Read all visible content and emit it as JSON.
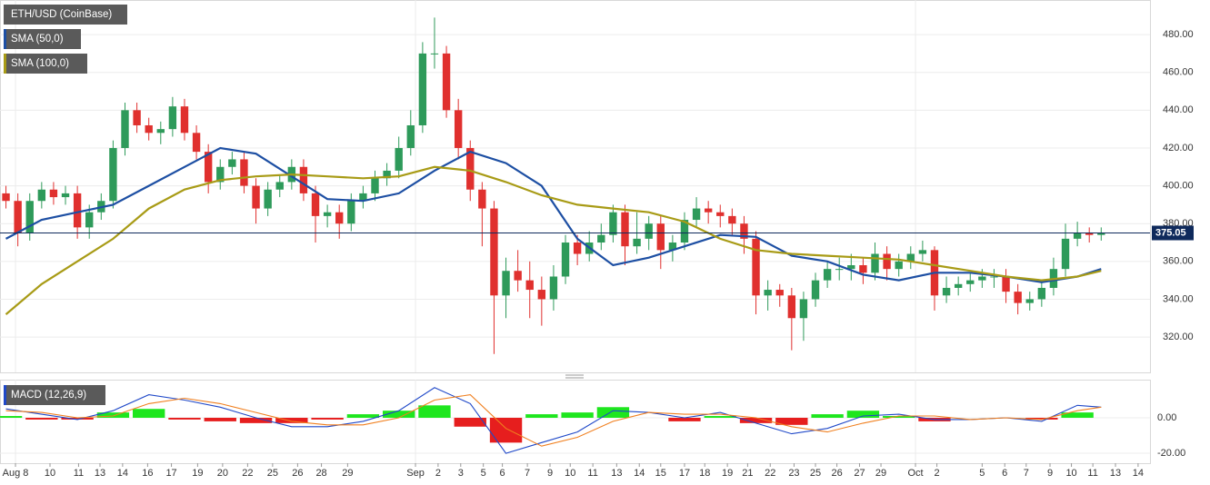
{
  "chart_data": {
    "type": "candlestick",
    "title": "ETH/USD (CoinBase)",
    "xlim": [
      0,
      96.6
    ],
    "xticks": [
      {
        "value": 1.3,
        "label": "Aug 8"
      },
      {
        "value": 4.2,
        "label": "10"
      },
      {
        "value": 6.6,
        "label": "11"
      },
      {
        "value": 8.4,
        "label": "13"
      },
      {
        "value": 10.3,
        "label": "14"
      },
      {
        "value": 12.4,
        "label": "16"
      },
      {
        "value": 14.4,
        "label": "17"
      },
      {
        "value": 16.6,
        "label": "19"
      },
      {
        "value": 18.7,
        "label": "20"
      },
      {
        "value": 20.8,
        "label": "22"
      },
      {
        "value": 22.9,
        "label": "25"
      },
      {
        "value": 25.0,
        "label": "26"
      },
      {
        "value": 27.0,
        "label": "28"
      },
      {
        "value": 29.2,
        "label": "29"
      },
      {
        "value": 34.9,
        "label": "Sep"
      },
      {
        "value": 36.8,
        "label": "2"
      },
      {
        "value": 38.7,
        "label": "3"
      },
      {
        "value": 40.6,
        "label": "5"
      },
      {
        "value": 42.2,
        "label": "6"
      },
      {
        "value": 44.3,
        "label": "7"
      },
      {
        "value": 46.2,
        "label": "9"
      },
      {
        "value": 47.9,
        "label": "10"
      },
      {
        "value": 49.8,
        "label": "11"
      },
      {
        "value": 51.8,
        "label": "13"
      },
      {
        "value": 53.7,
        "label": "14"
      },
      {
        "value": 55.5,
        "label": "15"
      },
      {
        "value": 57.5,
        "label": "17"
      },
      {
        "value": 59.2,
        "label": "18"
      },
      {
        "value": 61.1,
        "label": "19"
      },
      {
        "value": 62.8,
        "label": "21"
      },
      {
        "value": 64.7,
        "label": "22"
      },
      {
        "value": 66.7,
        "label": "23"
      },
      {
        "value": 68.5,
        "label": "25"
      },
      {
        "value": 70.3,
        "label": "26"
      },
      {
        "value": 72.2,
        "label": "27"
      },
      {
        "value": 74.0,
        "label": "29"
      },
      {
        "value": 76.9,
        "label": "Oct"
      },
      {
        "value": 78.7,
        "label": "2"
      },
      {
        "value": 82.5,
        "label": "5"
      },
      {
        "value": 84.4,
        "label": "6"
      },
      {
        "value": 86.2,
        "label": "7"
      },
      {
        "value": 88.2,
        "label": "9"
      },
      {
        "value": 90.0,
        "label": "10"
      },
      {
        "value": 91.8,
        "label": "11"
      },
      {
        "value": 93.7,
        "label": "13"
      },
      {
        "value": 95.6,
        "label": "14"
      }
    ],
    "ylim": [
      301.3,
      498.3
    ],
    "yticks": [
      {
        "value": 320,
        "label": "320.00"
      },
      {
        "value": 340,
        "label": "340.00"
      },
      {
        "value": 360,
        "label": "360.00"
      },
      {
        "value": 380,
        "label": "380.00"
      },
      {
        "value": 400,
        "label": "400.00"
      },
      {
        "value": 420,
        "label": "420.00"
      },
      {
        "value": 440,
        "label": "440.00"
      },
      {
        "value": 460,
        "label": "460.00"
      },
      {
        "value": 480,
        "label": "480.00"
      }
    ],
    "grid": true,
    "candles": {
      "up_color": "#2e9a5a",
      "down_color": "#e0302e",
      "open": [
        396,
        392,
        375,
        392,
        398,
        394,
        396,
        378,
        386,
        392,
        420,
        440,
        432,
        428,
        430,
        442,
        428,
        418,
        402,
        410,
        414,
        400,
        388,
        398,
        402,
        410,
        396,
        384,
        386,
        380,
        392,
        396,
        404,
        408,
        420,
        432,
        470,
        470,
        440,
        420,
        398,
        388,
        342,
        355,
        350,
        345,
        340,
        352,
        370,
        364,
        370,
        374,
        386,
        368,
        372,
        380,
        366,
        370,
        382,
        388,
        386,
        384,
        380,
        372,
        342,
        345,
        342,
        330,
        340,
        350,
        356,
        356,
        358,
        354,
        364,
        356,
        360,
        364,
        366,
        342,
        346,
        348,
        350,
        352,
        352,
        344,
        338,
        340,
        346,
        356,
        372,
        375,
        374
      ],
      "high": [
        400,
        396,
        396,
        402,
        402,
        400,
        400,
        390,
        396,
        424,
        444,
        444,
        436,
        434,
        447,
        446,
        432,
        422,
        414,
        418,
        418,
        404,
        402,
        406,
        414,
        414,
        400,
        390,
        390,
        396,
        400,
        408,
        412,
        426,
        440,
        476,
        489,
        474,
        446,
        424,
        402,
        392,
        362,
        366,
        360,
        352,
        358,
        374,
        374,
        376,
        380,
        390,
        390,
        386,
        384,
        384,
        374,
        386,
        394,
        392,
        390,
        388,
        384,
        376,
        350,
        348,
        346,
        344,
        354,
        360,
        362,
        364,
        362,
        370,
        368,
        364,
        368,
        371,
        368,
        352,
        352,
        354,
        356,
        356,
        356,
        348,
        344,
        350,
        362,
        380,
        381,
        378,
        378
      ],
      "low": [
        388,
        368,
        371,
        388,
        390,
        390,
        372,
        372,
        382,
        388,
        416,
        428,
        424,
        422,
        426,
        424,
        414,
        396,
        398,
        406,
        396,
        380,
        384,
        394,
        398,
        392,
        370,
        378,
        372,
        376,
        388,
        392,
        400,
        404,
        416,
        428,
        462,
        436,
        414,
        392,
        368,
        311,
        330,
        344,
        330,
        326,
        334,
        348,
        358,
        360,
        366,
        370,
        358,
        364,
        366,
        356,
        360,
        366,
        378,
        380,
        378,
        374,
        364,
        332,
        334,
        336,
        313,
        318,
        336,
        346,
        350,
        350,
        348,
        350,
        350,
        352,
        356,
        360,
        334,
        338,
        342,
        344,
        346,
        346,
        338,
        332,
        334,
        336,
        342,
        352,
        368,
        370,
        371
      ],
      "close": [
        392,
        375,
        392,
        398,
        394,
        396,
        378,
        386,
        392,
        420,
        440,
        432,
        428,
        430,
        442,
        428,
        418,
        402,
        410,
        414,
        400,
        388,
        398,
        402,
        410,
        396,
        384,
        386,
        380,
        392,
        396,
        404,
        408,
        420,
        432,
        470,
        470,
        440,
        420,
        398,
        388,
        342,
        355,
        350,
        345,
        340,
        352,
        370,
        364,
        370,
        374,
        386,
        368,
        372,
        380,
        366,
        370,
        382,
        388,
        386,
        384,
        380,
        372,
        342,
        345,
        342,
        330,
        340,
        350,
        356,
        356,
        358,
        354,
        364,
        356,
        360,
        364,
        366,
        342,
        346,
        348,
        350,
        352,
        352,
        344,
        338,
        340,
        346,
        356,
        372,
        375,
        374,
        375
      ]
    },
    "overlays": [
      {
        "name": "SMA (50,0)",
        "color": "#1d4fa3",
        "x": [
          0.5,
          3.5,
          6.5,
          9.5,
          12.5,
          15.5,
          18.5,
          21.5,
          24.5,
          27.5,
          30.5,
          33.5,
          36.5,
          39.5,
          42.5,
          45.5,
          48.5,
          51.5,
          54.5,
          57.5,
          60.5,
          63.5,
          66.5,
          69.5,
          72.5,
          75.5,
          78.5,
          81.5,
          84.5,
          87.5,
          90.5,
          92.5
        ],
        "values": [
          372,
          382,
          386,
          390,
          400,
          410,
          420,
          417,
          405,
          393,
          392,
          396,
          408,
          418,
          412,
          400,
          372,
          358,
          362,
          368,
          374,
          373,
          363,
          360,
          353,
          350,
          354,
          354,
          352,
          349,
          352,
          356
        ]
      },
      {
        "name": "SMA (100,0)",
        "color": "#a89b16",
        "x": [
          0.5,
          3.5,
          6.5,
          9.5,
          12.5,
          15.5,
          18.5,
          21.5,
          24.5,
          27.5,
          30.5,
          33.5,
          36.5,
          39.5,
          42.5,
          45.5,
          48.5,
          51.5,
          54.5,
          57.5,
          60.5,
          63.5,
          66.5,
          69.5,
          72.5,
          75.5,
          78.5,
          81.5,
          84.5,
          87.5,
          90.5,
          92.5
        ],
        "values": [
          332,
          348,
          360,
          372,
          388,
          398,
          403,
          405,
          406,
          405,
          404,
          405,
          410,
          408,
          402,
          395,
          390,
          388,
          386,
          381,
          372,
          366,
          364,
          363,
          362,
          361,
          358,
          355,
          352,
          350,
          352,
          355
        ]
      }
    ],
    "last_price": {
      "value": 375.05,
      "label": "375.05",
      "color": "#0f2a5c"
    },
    "macd": {
      "title": "MACD (12,26,9)",
      "ylim": [
        -25.6,
        21.5
      ],
      "yticks": [
        {
          "value": -20,
          "label": "-20.00"
        },
        {
          "value": 0,
          "label": "0.00"
        }
      ],
      "x": [
        0.5,
        3.5,
        6.5,
        9.5,
        12.5,
        15.5,
        18.5,
        21.5,
        24.5,
        27.5,
        30.5,
        33.5,
        36.5,
        39.5,
        42.5,
        45.5,
        48.5,
        51.5,
        54.5,
        57.5,
        60.5,
        63.5,
        66.5,
        69.5,
        72.5,
        75.5,
        78.5,
        81.5,
        84.5,
        87.5,
        90.5,
        92.5
      ],
      "series": [
        {
          "color": "#1f48c8",
          "values": [
            5,
            2,
            -1,
            4,
            13,
            10,
            6,
            0,
            -5,
            -5,
            -2,
            4,
            17,
            8,
            -20,
            -14,
            -8,
            4,
            3,
            0,
            3,
            -3,
            -9,
            -6,
            1,
            2,
            -1,
            -1,
            0,
            -2,
            7,
            6
          ]
        },
        {
          "color": "#f07f1e",
          "values": [
            4,
            3,
            0,
            1,
            8,
            11,
            8,
            3,
            -2,
            -4,
            -4,
            0,
            10,
            13,
            -6,
            -16,
            -11,
            -2,
            3,
            2,
            2,
            0,
            -5,
            -8,
            -3,
            1,
            1,
            -1,
            0,
            -1,
            4,
            6
          ]
        }
      ],
      "histogram": {
        "pos_color": "#1ee61e",
        "neg_color": "#e61e1e",
        "values": [
          1,
          -1,
          -1,
          3,
          5,
          -1,
          -2,
          -3,
          -3,
          -1,
          2,
          4,
          7,
          -5,
          -14,
          2,
          3,
          6,
          0,
          -2,
          1,
          -3,
          -4,
          2,
          4,
          1,
          -2,
          0,
          0,
          -1,
          3,
          0
        ]
      }
    }
  }
}
